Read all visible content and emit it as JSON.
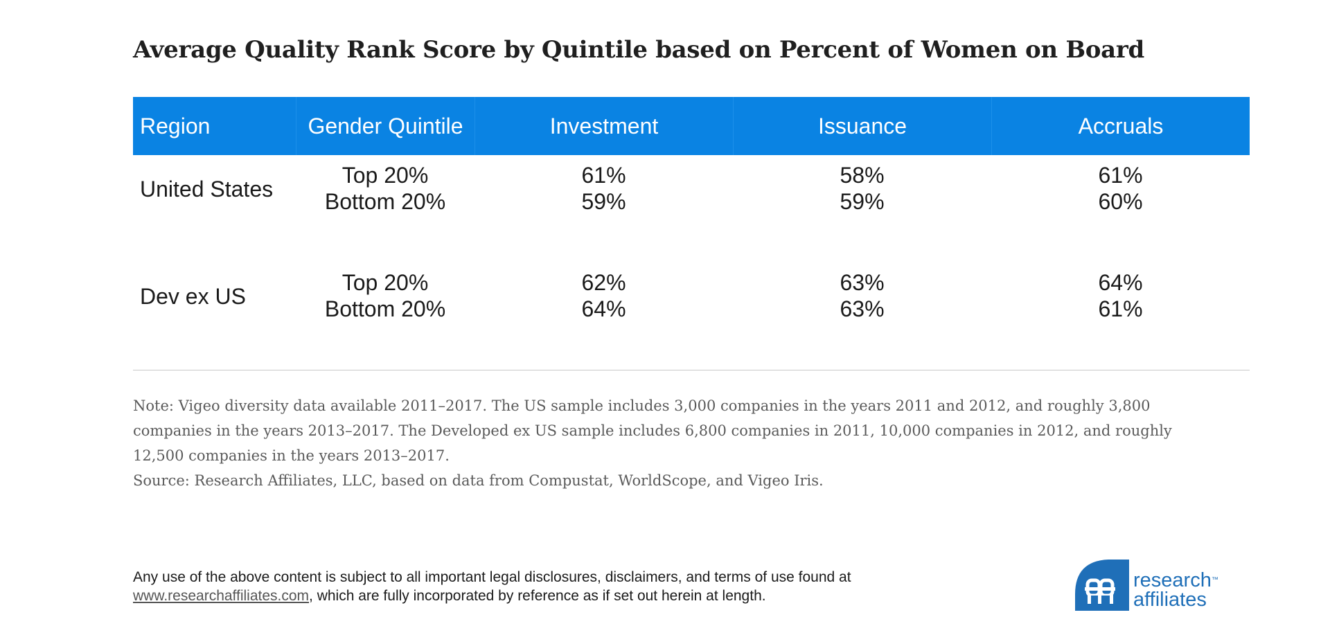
{
  "title": "Average Quality Rank Score by Quintile based on Percent of Women on Board",
  "chart_data": {
    "type": "table",
    "columns": [
      "Region",
      "Gender Quintile",
      "Investment",
      "Issuance",
      "Accruals"
    ],
    "rows": [
      {
        "region": "United States",
        "quintiles": [
          {
            "label": "Top 20%",
            "investment": "61%",
            "issuance": "58%",
            "accruals": "61%"
          },
          {
            "label": "Bottom 20%",
            "investment": "59%",
            "issuance": "59%",
            "accruals": "60%"
          }
        ]
      },
      {
        "region": "Dev ex US",
        "quintiles": [
          {
            "label": "Top 20%",
            "investment": "62%",
            "issuance": "63%",
            "accruals": "64%"
          },
          {
            "label": "Bottom 20%",
            "investment": "64%",
            "issuance": "63%",
            "accruals": "61%"
          }
        ]
      }
    ]
  },
  "note": {
    "line1": "Note: Vigeo diversity data available 2011–2017. The US sample includes 3,000 companies in the years 2011 and 2012, and roughly 3,800",
    "line2": "companies in the years 2013–2017. The Developed ex US sample includes 6,800 companies in 2011, 10,000 companies in 2012, and roughly",
    "line3": "12,500 companies in the years 2013–2017.",
    "source": "Source: Research Affiliates, LLC, based on data from Compustat, WorldScope, and Vigeo Iris."
  },
  "disclaimer": {
    "line1": "Any use of the above content is subject to all important legal disclosures, disclaimers, and terms of use found at",
    "link": "www.researchaffiliates.com",
    "line2_rest": ", which are fully incorporated by reference as if set out herein at length."
  },
  "logo": {
    "line1": "research",
    "tm": "™",
    "line2": "affiliates",
    "color": "#1f6fb8"
  },
  "colors": {
    "header_bg": "#0a83e3",
    "header_text": "#ffffff",
    "body_text": "#1a1a1a",
    "note_text": "#5a5a5a"
  }
}
